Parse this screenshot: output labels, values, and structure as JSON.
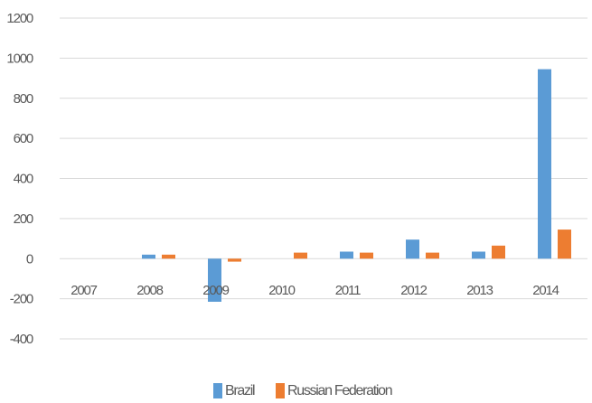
{
  "chart_data": {
    "type": "bar",
    "title": "",
    "xlabel": "",
    "ylabel": "",
    "categories": [
      "2007",
      "2008",
      "2009",
      "2010",
      "2011",
      "2012",
      "2013",
      "2014"
    ],
    "series": [
      {
        "name": "Brazil",
        "color": "#5B9BD5",
        "values": [
          0,
          20,
          -215,
          0,
          35,
          95,
          35,
          945
        ]
      },
      {
        "name": "Russian Federation",
        "color": "#ED7D31",
        "values": [
          0,
          20,
          -15,
          30,
          30,
          30,
          65,
          145
        ]
      }
    ],
    "ylim": [
      -400,
      1200
    ],
    "yticks": [
      -400,
      -200,
      0,
      200,
      400,
      600,
      800,
      1000,
      1200
    ],
    "grid": true,
    "legend_position": "bottom"
  }
}
